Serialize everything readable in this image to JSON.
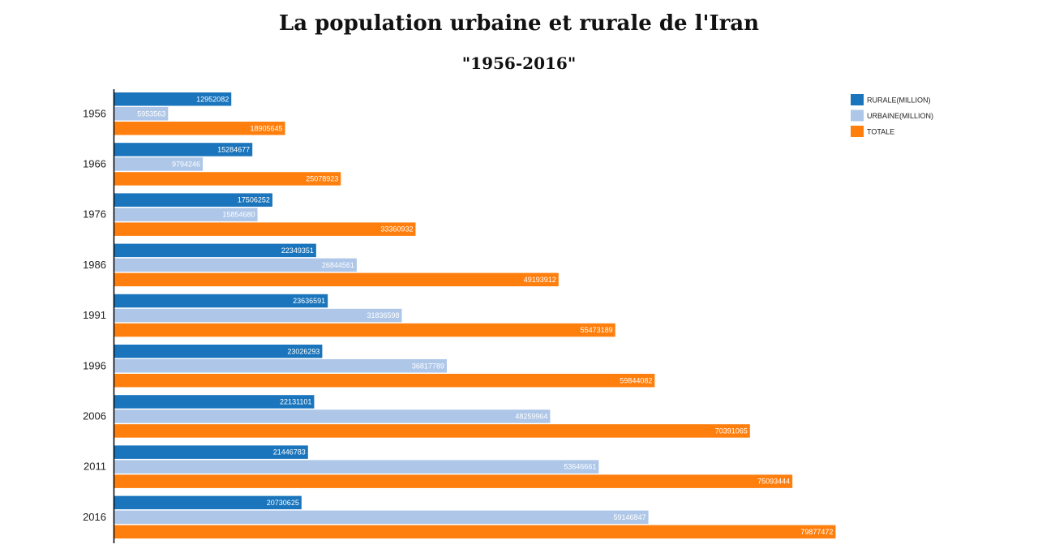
{
  "chart_data": {
    "type": "bar",
    "orientation": "horizontal",
    "title": "La population urbaine et rurale de l'Iran",
    "subtitle": "\"1956-2016\"",
    "categories": [
      "1956",
      "1966",
      "1976",
      "1986",
      "1991",
      "1996",
      "2006",
      "2011",
      "2016"
    ],
    "series": [
      {
        "name": "RURALE(MILLION)",
        "color": "#1a75bc",
        "values": [
          12952082,
          15284677,
          17506252,
          22349351,
          23636591,
          23026293,
          22131101,
          21446783,
          20730625
        ]
      },
      {
        "name": "URBAINE(MILLION)",
        "color": "#aec7e8",
        "values": [
          5953563,
          9794246,
          15854680,
          26844561,
          31836598,
          36817789,
          48259964,
          53646661,
          59146847
        ]
      },
      {
        "name": "TOTALE",
        "color": "#ff7f0e",
        "values": [
          18905645,
          25078923,
          33360932,
          49193912,
          55473189,
          59844082,
          70391065,
          75093444,
          79877472
        ]
      }
    ],
    "xlim": [
      0,
      80000000
    ],
    "grid": false,
    "legend_position": "top-right"
  }
}
